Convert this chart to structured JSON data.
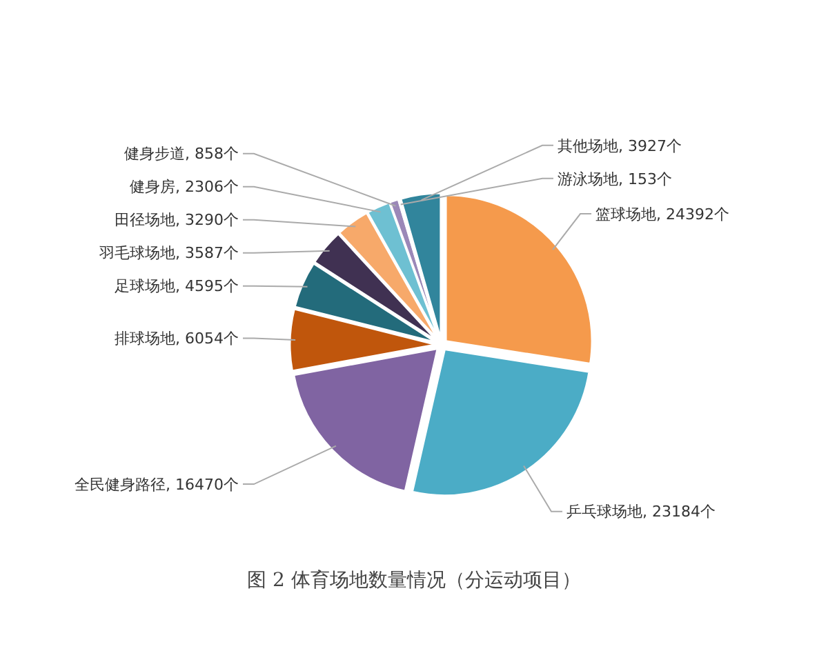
{
  "chart_data": {
    "type": "pie",
    "title": "图 2 体育场地数量情况（分运动项目）",
    "categories": [
      "篮球场地",
      "乒乓球场地",
      "全民健身路径",
      "排球场地",
      "足球场地",
      "羽毛球场地",
      "田径场地",
      "健身房",
      "健身步道",
      "游泳场地",
      "其他场地"
    ],
    "values": [
      24392,
      23184,
      16470,
      6054,
      4595,
      3587,
      3290,
      2306,
      858,
      153,
      3927
    ],
    "value_labels": [
      "24392个",
      "23184个",
      "16470个",
      "6054个",
      "4595个",
      "3587个",
      "3290个",
      "2306个",
      "858个",
      "153个",
      "3927个"
    ],
    "colors": [
      "#f59a4c",
      "#4bacc6",
      "#8064a2",
      "#c0560c",
      "#236b7b",
      "#403152",
      "#f7a96a",
      "#6ec0d2",
      "#9b88b8",
      "#b0a8cc",
      "#31859c"
    ]
  }
}
